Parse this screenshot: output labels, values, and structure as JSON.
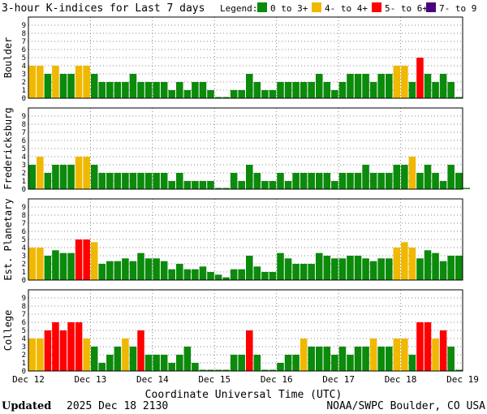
{
  "title": "3-hour K-indices for Last 7 days",
  "legend": {
    "label": "Legend:",
    "items": [
      {
        "text": "0 to 3+",
        "color": "#0b8a0b"
      },
      {
        "text": "4- to 4+",
        "color": "#f0b800"
      },
      {
        "text": "5- to 6+",
        "color": "#ff0000"
      },
      {
        "text": "7- to 9",
        "color": "#4b0082"
      }
    ]
  },
  "x_axis": {
    "label": "Coordinate Universal Time (UTC)",
    "ticks": [
      "Dec 12",
      "Dec 13",
      "Dec 14",
      "Dec 15",
      "Dec 16",
      "Dec 17",
      "Dec 18",
      "Dec 19"
    ]
  },
  "footer": {
    "updated_label": "Updated",
    "updated_value": "2025 Dec 18 2130",
    "source": "NOAA/SWPC Boulder, CO USA"
  },
  "chart_data": {
    "type": "bar",
    "ylim": [
      0,
      9
    ],
    "y_ticks": [
      0,
      1,
      2,
      3,
      4,
      5,
      6,
      7,
      8,
      9
    ],
    "grid": true,
    "bar_colors": {
      "0-3": "#0b8a0b",
      "4": "#f0b800",
      "5-6": "#ff0000",
      "7-9": "#4b0082"
    },
    "panels": [
      {
        "name": "Boulder",
        "values": [
          4,
          4,
          3,
          4,
          3,
          3,
          4,
          4,
          3,
          2,
          2,
          2,
          2,
          3,
          2,
          2,
          2,
          2,
          1,
          2,
          1,
          2,
          2,
          1,
          0,
          0,
          1,
          1,
          3,
          2,
          1,
          1,
          2,
          2,
          2,
          2,
          2,
          3,
          2,
          1,
          2,
          3,
          3,
          3,
          2,
          3,
          3,
          4,
          4,
          2,
          5,
          3,
          2,
          3,
          2,
          0
        ]
      },
      {
        "name": "Fredericksburg",
        "values": [
          3,
          4,
          2,
          3,
          3,
          3,
          4,
          4,
          3,
          2,
          2,
          2,
          2,
          2,
          2,
          2,
          2,
          2,
          1,
          2,
          1,
          1,
          1,
          1,
          0,
          0,
          2,
          1,
          3,
          2,
          1,
          1,
          2,
          1,
          2,
          2,
          2,
          2,
          2,
          1,
          2,
          2,
          2,
          3,
          2,
          2,
          2,
          3,
          3,
          4,
          2,
          3,
          2,
          1,
          3,
          2,
          0
        ]
      },
      {
        "name": "Est. Planetary",
        "values": [
          4,
          4,
          3,
          3.67,
          3.33,
          3.33,
          5,
          5,
          4.67,
          2,
          2.33,
          2.33,
          2.67,
          2.33,
          3.33,
          2.67,
          2.67,
          2.33,
          1.33,
          2,
          1.33,
          1.33,
          1.67,
          1,
          0.67,
          0.33,
          1.33,
          1.33,
          3,
          1.67,
          1,
          1,
          3.33,
          2.67,
          2,
          2,
          2,
          3.33,
          3,
          2.67,
          2.67,
          3,
          3,
          2.67,
          2.33,
          2.67,
          2.67,
          4,
          4.67,
          4,
          2.67,
          3.67,
          3.33,
          2.33,
          3,
          3
        ]
      },
      {
        "name": "College",
        "values": [
          4,
          4,
          5,
          6,
          5,
          6,
          6,
          4,
          3,
          1,
          2,
          3,
          4,
          3,
          5,
          2,
          2,
          2,
          1,
          2,
          3,
          1,
          0,
          0,
          0,
          0,
          2,
          2,
          5,
          2,
          0,
          0,
          1,
          2,
          2,
          4,
          3,
          3,
          3,
          2,
          3,
          2,
          3,
          3,
          4,
          3,
          3,
          4,
          4,
          2,
          6,
          6,
          4,
          5,
          3,
          0
        ]
      }
    ]
  }
}
